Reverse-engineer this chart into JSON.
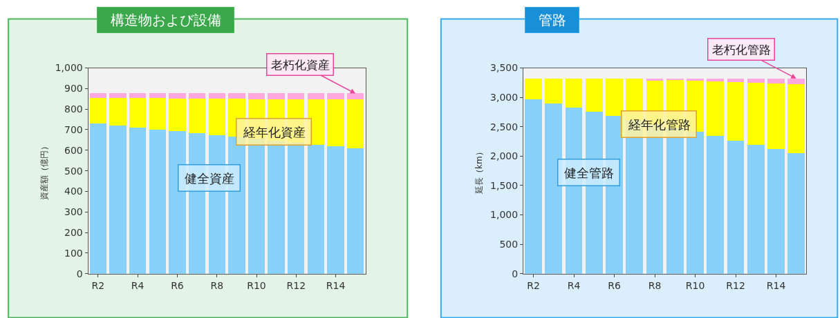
{
  "chart_data": [
    {
      "type": "bar",
      "title": "構造物および設備",
      "ylabel": "資産額（億円）",
      "stacked": true,
      "grid": false,
      "categories": [
        "R2",
        null,
        "R4",
        null,
        "R6",
        null,
        "R8",
        null,
        "R10",
        null,
        "R12",
        null,
        "R14",
        null
      ],
      "ylim": [
        0,
        1000
      ],
      "yticks": [
        0,
        100,
        200,
        300,
        400,
        500,
        600,
        700,
        800,
        900,
        {
          "value": 1000,
          "label": "1,000"
        }
      ],
      "series": [
        {
          "name": "健全資産",
          "color": "#87d0fa",
          "values": [
            729,
            720,
            710,
            701,
            692,
            683,
            674,
            665,
            655,
            645,
            636,
            627,
            619,
            609
          ]
        },
        {
          "name": "経年化資産",
          "color": "#ffff00",
          "values": [
            126,
            135,
            145,
            154,
            160,
            169,
            178,
            187,
            192,
            202,
            211,
            220,
            228,
            238
          ]
        },
        {
          "name": "老朽化資産",
          "color": "#ffa8e0",
          "values": [
            21,
            21,
            21,
            21,
            24,
            24,
            24,
            24,
            29,
            29,
            29,
            29,
            29,
            29
          ]
        }
      ]
    },
    {
      "type": "bar",
      "title": "管路",
      "ylabel": "延長（km）",
      "stacked": true,
      "grid": false,
      "categories": [
        "R2",
        null,
        "R4",
        null,
        "R6",
        null,
        "R8",
        null,
        "R10",
        null,
        "R12",
        null,
        "R14",
        null
      ],
      "ylim": [
        0,
        3500
      ],
      "yticks": [
        0,
        500,
        {
          "value": 1000,
          "label": "1,000"
        },
        {
          "value": 1500,
          "label": "1,500"
        },
        {
          "value": 2000,
          "label": "2,000"
        },
        {
          "value": 2500,
          "label": "2,500"
        },
        {
          "value": 3000,
          "label": "3,000"
        },
        {
          "value": 3500,
          "label": "3,500"
        }
      ],
      "series": [
        {
          "name": "健全管路",
          "color": "#87d0fa",
          "values": [
            2970,
            2890,
            2820,
            2750,
            2680,
            2610,
            2540,
            2480,
            2410,
            2340,
            2260,
            2190,
            2120,
            2050
          ]
        },
        {
          "name": "経年化管路",
          "color": "#ffff00",
          "values": [
            350,
            430,
            500,
            570,
            640,
            710,
            760,
            810,
            870,
            930,
            1000,
            1060,
            1120,
            1180
          ]
        },
        {
          "name": "老朽化管路",
          "color": "#ffa8e0",
          "values": [
            0,
            0,
            0,
            0,
            0,
            0,
            20,
            30,
            40,
            50,
            60,
            70,
            80,
            90
          ]
        }
      ]
    }
  ]
}
